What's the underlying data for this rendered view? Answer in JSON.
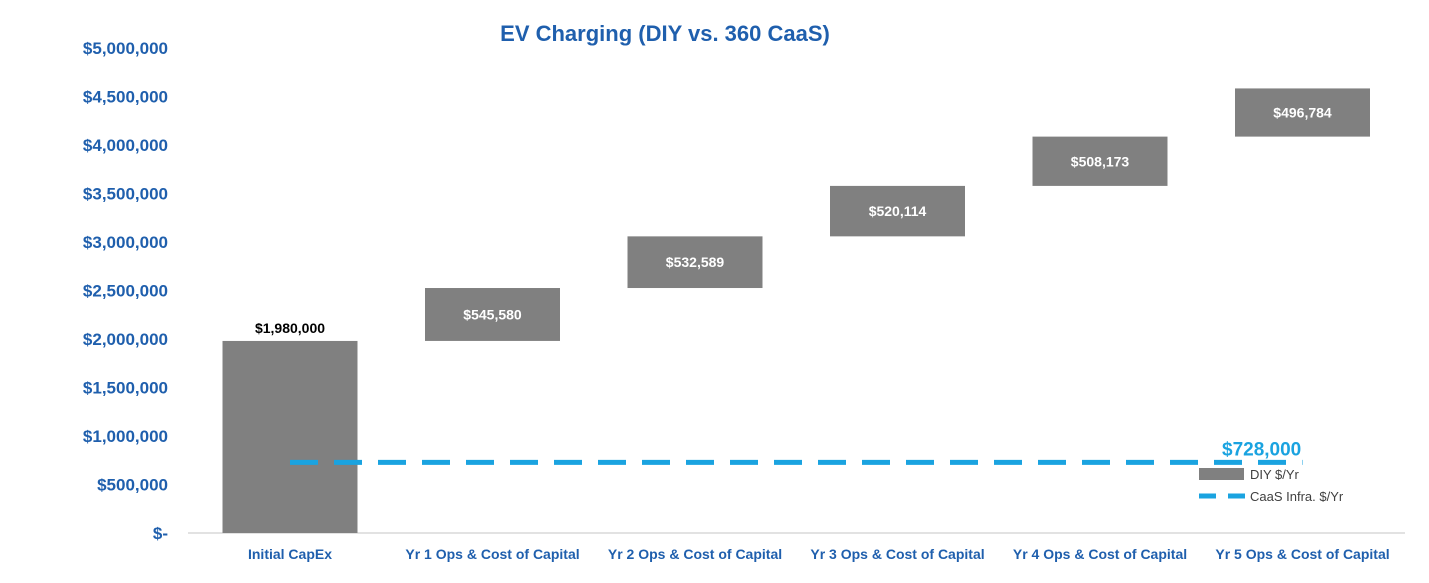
{
  "chart_data": {
    "type": "bar",
    "subtype": "waterfall",
    "title": "EV Charging (DIY vs. 360 CaaS)",
    "xlabel": "",
    "ylabel": "",
    "ylim": [
      0,
      5000000
    ],
    "yticks": [
      0,
      500000,
      1000000,
      1500000,
      2000000,
      2500000,
      3000000,
      3500000,
      4000000,
      4500000,
      5000000
    ],
    "ytick_labels": [
      "$-",
      "$500,000",
      "$1,000,000",
      "$1,500,000",
      "$2,000,000",
      "$2,500,000",
      "$3,000,000",
      "$3,500,000",
      "$4,000,000",
      "$4,500,000",
      "$5,000,000"
    ],
    "categories": [
      "Initial CapEx",
      "Yr 1 Ops & Cost of Capital",
      "Yr 2 Ops & Cost of Capital",
      "Yr 3 Ops & Cost of Capital",
      "Yr 4 Ops & Cost of Capital",
      "Yr 5 Ops & Cost of Capital"
    ],
    "series": [
      {
        "name": "DIY $/Yr",
        "type": "waterfall",
        "values": [
          1980000,
          545580,
          532589,
          520114,
          508173,
          496784
        ],
        "labels": [
          "$1,980,000",
          "$545,580",
          "$532,589",
          "$520,114",
          "$508,173",
          "$496,784"
        ]
      },
      {
        "name": "CaaS Infra. $/Yr",
        "type": "line",
        "style": "dashed",
        "value": 728000,
        "label": "$728,000"
      }
    ],
    "legend": {
      "position": "bottom-right",
      "entries": [
        "DIY $/Yr",
        "CaaS Infra. $/Yr"
      ]
    },
    "grid": false,
    "colors": {
      "bar": "#808080",
      "line": "#1AA3E0",
      "axis_text": "#1F5FAD",
      "title": "#1F5FAD",
      "first_label": "#000000",
      "bar_label": "#ffffff",
      "baseline": "#D9D9D9"
    }
  }
}
